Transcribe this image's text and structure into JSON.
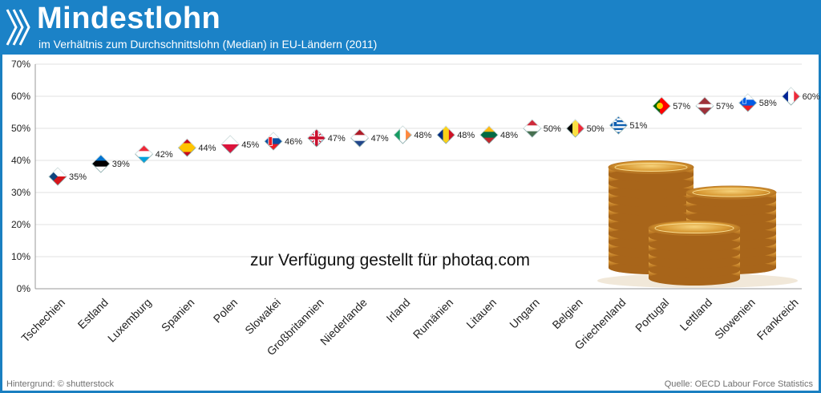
{
  "header": {
    "title": "Mindestlohn",
    "subtitle": "im Verhältnis zum Durchschnittslohn (Median) in  EU-Ländern (2011)"
  },
  "footer": {
    "background_credit": "Hintergrund: © shutterstock",
    "source": "Quelle: OECD Labour Force Statistics"
  },
  "watermark": "zur Verfügung gestellt für photaq.com",
  "colors": {
    "header_bg": "#1b82c7",
    "gridline": "#e0e0e0",
    "axis": "#999999"
  },
  "chart_data": {
    "type": "scatter",
    "title": "Mindestlohn",
    "subtitle": "im Verhältnis zum Durchschnittslohn (Median) in  EU-Ländern (2011)",
    "ylim": [
      0,
      70
    ],
    "yticks": [
      "0%",
      "10%",
      "20%",
      "30%",
      "40%",
      "50%",
      "60%",
      "70%"
    ],
    "grid": true,
    "points": [
      {
        "country": "Tschechien",
        "value": 35,
        "label": "35%",
        "flag": "czech-flag-icon"
      },
      {
        "country": "Estland",
        "value": 39,
        "label": "39%",
        "flag": "estonia-flag-icon"
      },
      {
        "country": "Luxemburg",
        "value": 42,
        "label": "42%",
        "flag": "luxembourg-flag-icon"
      },
      {
        "country": "Spanien",
        "value": 44,
        "label": "44%",
        "flag": "spain-flag-icon"
      },
      {
        "country": "Polen",
        "value": 45,
        "label": "45%",
        "flag": "poland-flag-icon"
      },
      {
        "country": "Slowakei",
        "value": 46,
        "label": "46%",
        "flag": "slovakia-flag-icon"
      },
      {
        "country": "Großbritannien",
        "value": 47,
        "label": "47%",
        "flag": "uk-flag-icon"
      },
      {
        "country": "Niederlande",
        "value": 47,
        "label": "47%",
        "flag": "netherlands-flag-icon"
      },
      {
        "country": "Irland",
        "value": 48,
        "label": "48%",
        "flag": "ireland-flag-icon"
      },
      {
        "country": "Rumänien",
        "value": 48,
        "label": "48%",
        "flag": "romania-flag-icon"
      },
      {
        "country": "Litauen",
        "value": 48,
        "label": "48%",
        "flag": "lithuania-flag-icon"
      },
      {
        "country": "Ungarn",
        "value": 50,
        "label": "50%",
        "flag": "hungary-flag-icon"
      },
      {
        "country": "Belgien",
        "value": 50,
        "label": "50%",
        "flag": "belgium-flag-icon"
      },
      {
        "country": "Griechenland",
        "value": 51,
        "label": "51%",
        "flag": "greece-flag-icon"
      },
      {
        "country": "Portugal",
        "value": 57,
        "label": "57%",
        "flag": "portugal-flag-icon"
      },
      {
        "country": "Lettland",
        "value": 57,
        "label": "57%",
        "flag": "latvia-flag-icon"
      },
      {
        "country": "Slowenien",
        "value": 58,
        "label": "58%",
        "flag": "slovenia-flag-icon"
      },
      {
        "country": "Frankreich",
        "value": 60,
        "label": "60%",
        "flag": "france-flag-icon"
      }
    ]
  }
}
